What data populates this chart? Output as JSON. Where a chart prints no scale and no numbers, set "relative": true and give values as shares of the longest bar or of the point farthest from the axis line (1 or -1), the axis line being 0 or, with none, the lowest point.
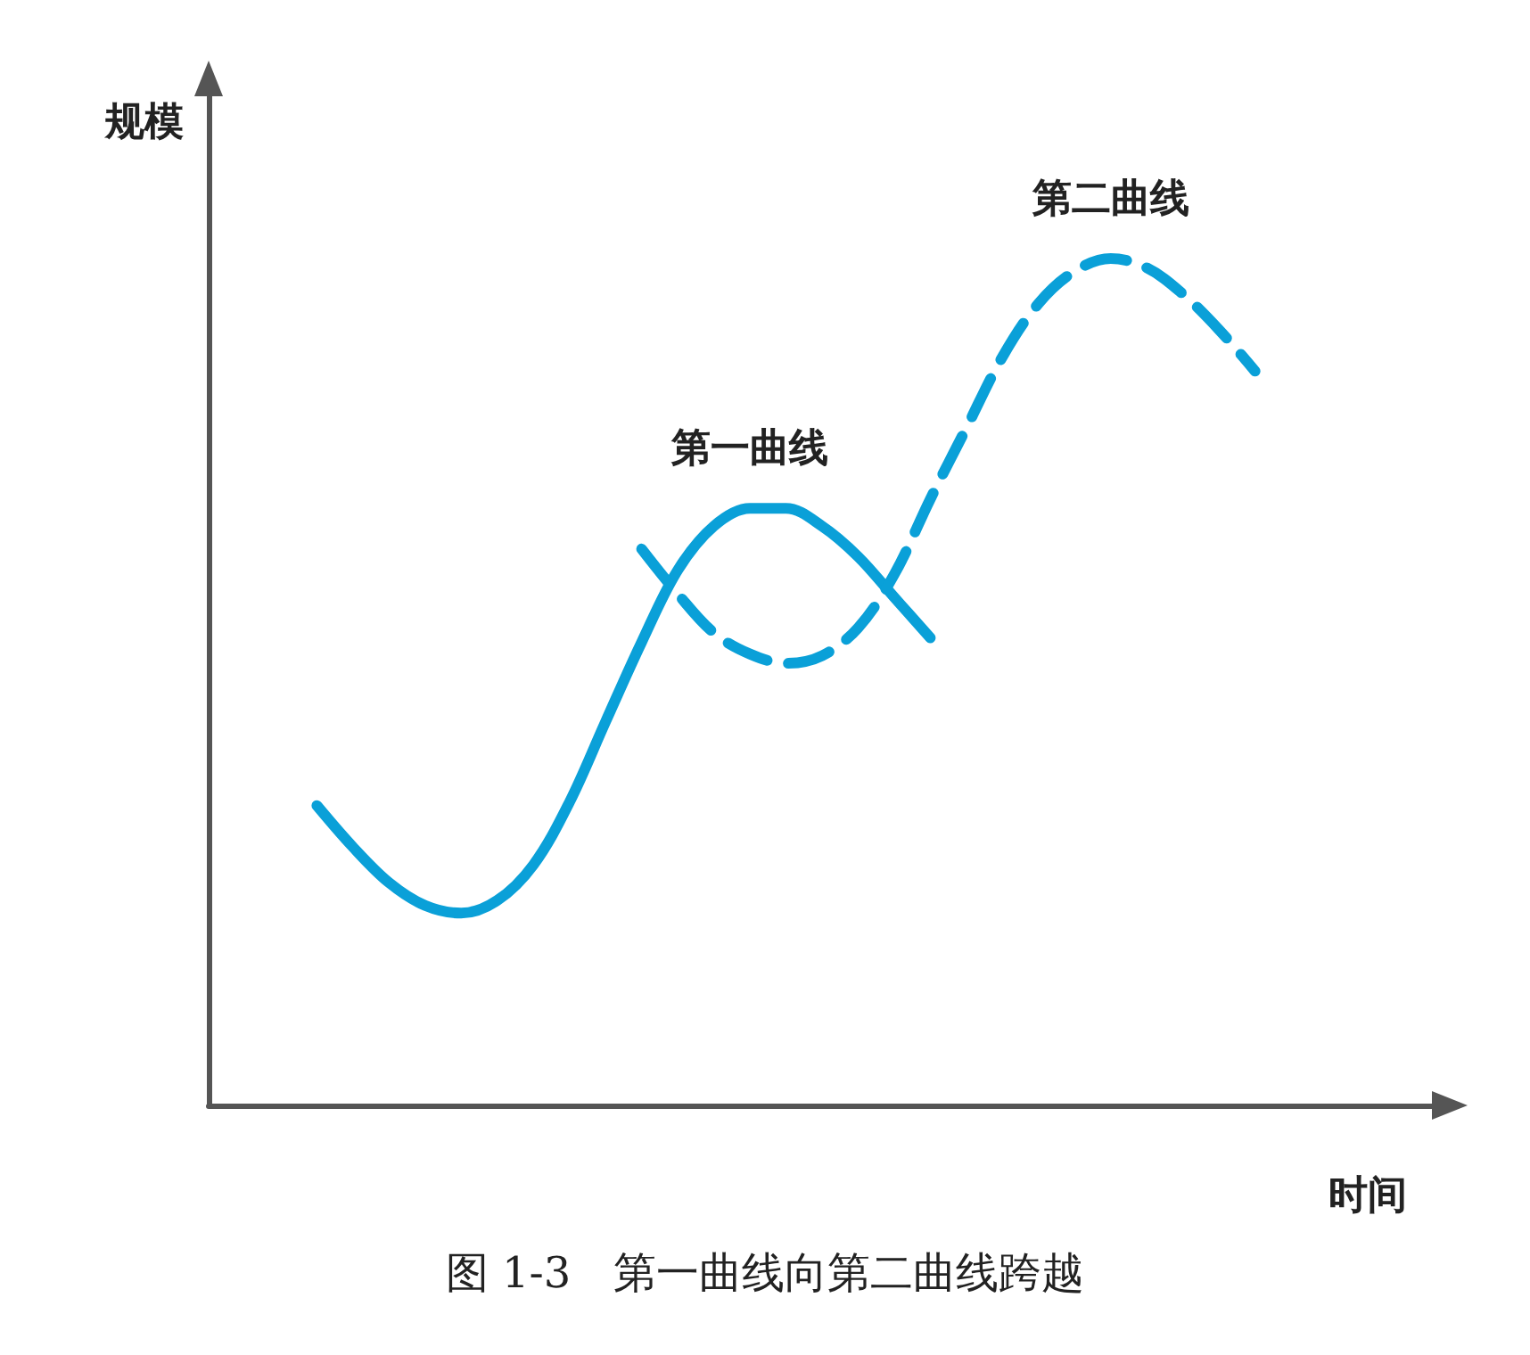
{
  "chart_data": {
    "type": "line",
    "relative": true,
    "xlabel": "时间",
    "ylabel": "规模",
    "annotations": [
      "图 1-3　第一曲线向第二曲线跨越"
    ],
    "legend": false,
    "grid": false,
    "marker": "none",
    "categories": [
      null,
      null,
      null,
      null,
      null,
      null,
      null,
      null,
      null,
      null,
      null,
      null,
      null,
      null,
      null,
      null,
      null,
      null,
      null,
      null,
      null,
      null,
      null,
      null,
      null,
      null,
      null,
      null,
      null,
      null,
      null,
      null,
      null,
      null,
      null
    ],
    "series": [
      {
        "name": "第一曲线",
        "color": "#0aa0d8",
        "line_style": "solid",
        "values": [
          null,
          null,
          null,
          0.354,
          0.305,
          0.263,
          0.236,
          0.227,
          0.242,
          0.284,
          0.358,
          0.453,
          0.547,
          0.632,
          0.684,
          0.705,
          0.705,
          0.684,
          0.648,
          0.6,
          0.552,
          null,
          null,
          null,
          null,
          null,
          null,
          null,
          null,
          null,
          null,
          null,
          null,
          null,
          null
        ]
      },
      {
        "name": "第二曲线",
        "color": "#0aa0d8",
        "line_style": "dashed",
        "values": [
          null,
          null,
          null,
          null,
          null,
          null,
          null,
          null,
          null,
          null,
          null,
          null,
          0.657,
          0.604,
          0.558,
          0.533,
          0.522,
          0.531,
          0.564,
          0.627,
          0.716,
          0.8,
          0.884,
          0.947,
          0.985,
          1,
          0.989,
          0.958,
          0.916,
          0.867,
          null,
          null,
          null,
          null,
          null
        ]
      }
    ]
  }
}
